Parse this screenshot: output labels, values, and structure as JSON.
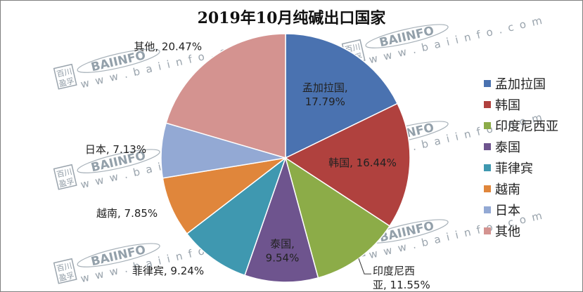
{
  "chart_data": {
    "type": "pie",
    "title": "2019年10月纯碱出口国家",
    "slices": [
      {
        "name": "孟加拉国",
        "value": 17.79,
        "label": "孟加拉国,\n17.79%",
        "color": "#4a72b0"
      },
      {
        "name": "韩国",
        "value": 16.44,
        "label": "韩国, 16.44%",
        "color": "#b0413e"
      },
      {
        "name": "印度尼西亚",
        "value": 11.55,
        "label": "印度尼西\n亚, 11.55%",
        "color": "#8cac48"
      },
      {
        "name": "泰国",
        "value": 9.54,
        "label": "泰国,\n9.54%",
        "color": "#6e548e"
      },
      {
        "name": "菲律宾",
        "value": 9.24,
        "label": "菲律宾, 9.24%",
        "color": "#3f98b0"
      },
      {
        "name": "越南",
        "value": 7.85,
        "label": "越南, 7.85%",
        "color": "#e0863b"
      },
      {
        "name": "日本",
        "value": 7.13,
        "label": "日本, 7.13%",
        "color": "#93a9d4"
      },
      {
        "name": "其他",
        "value": 20.47,
        "label": "其他, 20.47%",
        "color": "#d49390"
      }
    ],
    "legend_position": "right"
  },
  "watermark": {
    "logo": "BAIINFO",
    "url": "w w w . b a i i n f o . c o m",
    "cn_top": "百川",
    "cn_bottom": "盈孚"
  }
}
